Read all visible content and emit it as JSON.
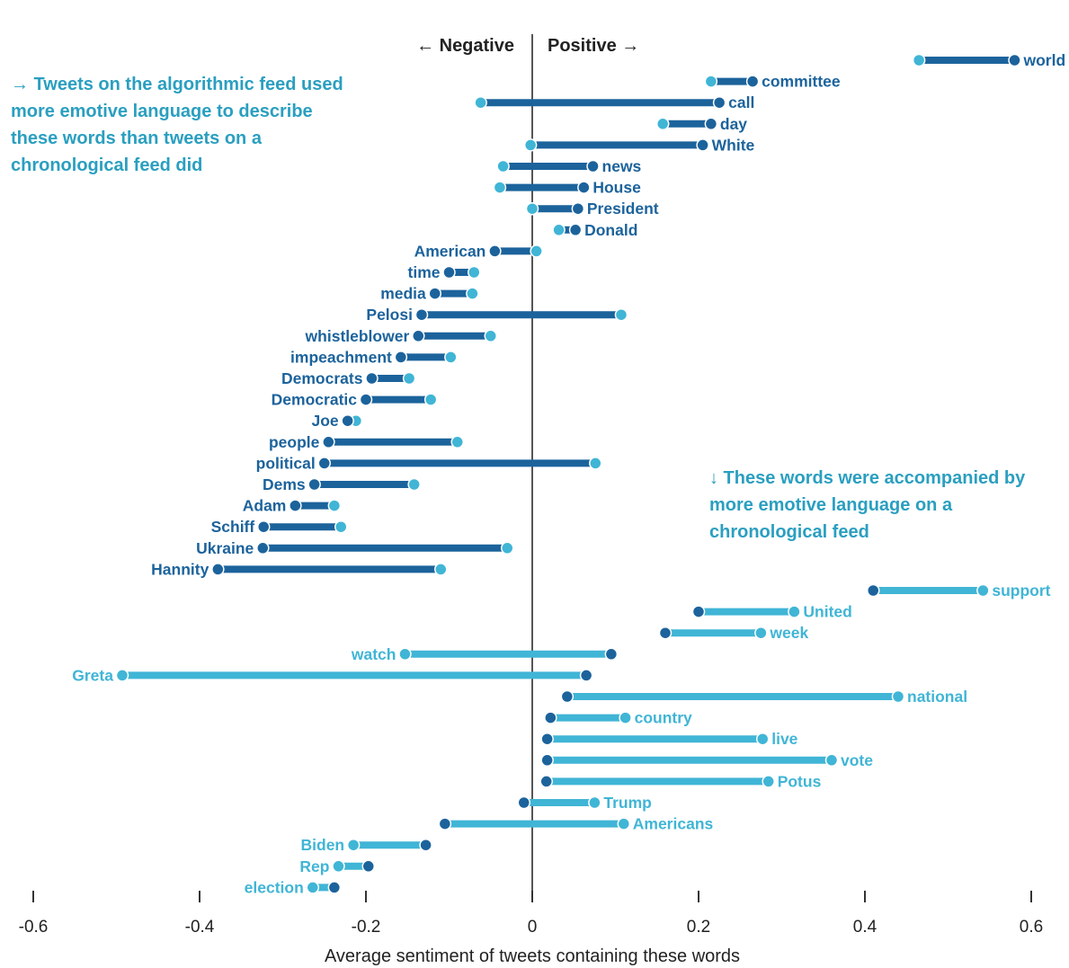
{
  "chart_data": {
    "type": "dumbbell",
    "xlabel": "Average sentiment of tweets containing these words",
    "xlim": [
      -0.6,
      0.6
    ],
    "xticks": [
      -0.6,
      -0.4,
      -0.2,
      0,
      0.2,
      0.4,
      0.6
    ],
    "xtick_labels": [
      "-0.6",
      "-0.4",
      "-0.2",
      "0",
      "0.2",
      "0.4",
      "0.6"
    ],
    "direction_left": "← Negative",
    "direction_right": "Positive →",
    "series": [
      {
        "name": "Algorithmic feed",
        "color": "#1c639c"
      },
      {
        "name": "Chronological feed",
        "color": "#40b5d6"
      }
    ],
    "groups": [
      {
        "annotation": "→ Tweets on the algorithmic feed used more emotive language to describe these words than tweets on a chronological feed did",
        "color": "#1c639c",
        "rows": [
          {
            "word": "world",
            "algorithmic": 0.58,
            "chronological": 0.465
          },
          {
            "word": "committee",
            "algorithmic": 0.265,
            "chronological": 0.215
          },
          {
            "word": "call",
            "algorithmic": 0.225,
            "chronological": -0.062
          },
          {
            "word": "day",
            "algorithmic": 0.215,
            "chronological": 0.157
          },
          {
            "word": "White",
            "algorithmic": 0.205,
            "chronological": -0.002
          },
          {
            "word": "news",
            "algorithmic": 0.073,
            "chronological": -0.035
          },
          {
            "word": "House",
            "algorithmic": 0.062,
            "chronological": -0.039
          },
          {
            "word": "President",
            "algorithmic": 0.055,
            "chronological": 0.0
          },
          {
            "word": "Donald",
            "algorithmic": 0.052,
            "chronological": 0.032
          },
          {
            "word": "American",
            "algorithmic": -0.045,
            "chronological": 0.005
          },
          {
            "word": "time",
            "algorithmic": -0.1,
            "chronological": -0.07
          },
          {
            "word": "media",
            "algorithmic": -0.117,
            "chronological": -0.072
          },
          {
            "word": "Pelosi",
            "algorithmic": -0.133,
            "chronological": 0.107
          },
          {
            "word": "whistleblower",
            "algorithmic": -0.137,
            "chronological": -0.05
          },
          {
            "word": "impeachment",
            "algorithmic": -0.158,
            "chronological": -0.098
          },
          {
            "word": "Democrats",
            "algorithmic": -0.193,
            "chronological": -0.148
          },
          {
            "word": "Democratic",
            "algorithmic": -0.2,
            "chronological": -0.122
          },
          {
            "word": "Joe",
            "algorithmic": -0.222,
            "chronological": -0.212
          },
          {
            "word": "people",
            "algorithmic": -0.245,
            "chronological": -0.09
          },
          {
            "word": "political",
            "algorithmic": -0.25,
            "chronological": 0.076
          },
          {
            "word": "Dems",
            "algorithmic": -0.262,
            "chronological": -0.142
          },
          {
            "word": "Adam",
            "algorithmic": -0.285,
            "chronological": -0.238
          },
          {
            "word": "Schiff",
            "algorithmic": -0.323,
            "chronological": -0.23
          },
          {
            "word": "Ukraine",
            "algorithmic": -0.324,
            "chronological": -0.03
          },
          {
            "word": "Hannity",
            "algorithmic": -0.378,
            "chronological": -0.11
          }
        ]
      },
      {
        "annotation": "↓ These words were accompanied by more emotive language on a chronological feed",
        "color": "#2a9fc0",
        "rows": [
          {
            "word": "support",
            "algorithmic": 0.41,
            "chronological": 0.542
          },
          {
            "word": "United",
            "algorithmic": 0.2,
            "chronological": 0.315
          },
          {
            "word": "week",
            "algorithmic": 0.16,
            "chronological": 0.275
          },
          {
            "word": "watch",
            "algorithmic": 0.095,
            "chronological": -0.153
          },
          {
            "word": "Greta",
            "algorithmic": 0.065,
            "chronological": -0.493
          },
          {
            "word": "national",
            "algorithmic": 0.042,
            "chronological": 0.44
          },
          {
            "word": "country",
            "algorithmic": 0.022,
            "chronological": 0.112
          },
          {
            "word": "live",
            "algorithmic": 0.018,
            "chronological": 0.277
          },
          {
            "word": "vote",
            "algorithmic": 0.018,
            "chronological": 0.36
          },
          {
            "word": "Potus",
            "algorithmic": 0.017,
            "chronological": 0.284
          },
          {
            "word": "Trump",
            "algorithmic": -0.01,
            "chronological": 0.075
          },
          {
            "word": "Americans",
            "algorithmic": -0.105,
            "chronological": 0.11
          },
          {
            "word": "Biden",
            "algorithmic": -0.128,
            "chronological": -0.215
          },
          {
            "word": "Rep",
            "algorithmic": -0.197,
            "chronological": -0.233
          },
          {
            "word": "election",
            "algorithmic": -0.238,
            "chronological": -0.264
          }
        ]
      }
    ]
  }
}
